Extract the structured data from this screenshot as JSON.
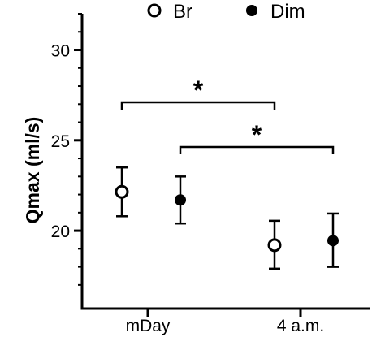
{
  "chart_data": {
    "type": "scatter",
    "title": "",
    "xlabel": "",
    "ylabel": "Qmax (ml/s)",
    "categories": [
      "mDay",
      "4 a.m."
    ],
    "ylim": [
      16.5,
      32
    ],
    "y_ticks": [
      20,
      25,
      30
    ],
    "y_minor_step": 1,
    "grid": false,
    "legend_position": "top",
    "series": [
      {
        "name": "Br",
        "marker": "open-circle",
        "color": "#000000",
        "values": [
          22.15,
          19.2
        ],
        "error_low": [
          20.8,
          17.9
        ],
        "error_high": [
          23.5,
          20.55
        ]
      },
      {
        "name": "Dim",
        "marker": "filled-circle",
        "color": "#000000",
        "values": [
          21.7,
          19.45
        ],
        "error_low": [
          20.4,
          18.0
        ],
        "error_high": [
          23.0,
          20.95
        ]
      }
    ],
    "annotations": [
      {
        "text": "*",
        "from_series": 0,
        "from_category": 0,
        "to_series": 0,
        "to_category": 1,
        "level": 1
      },
      {
        "text": "*",
        "from_series": 1,
        "from_category": 0,
        "to_series": 1,
        "to_category": 1,
        "level": 0
      }
    ]
  }
}
